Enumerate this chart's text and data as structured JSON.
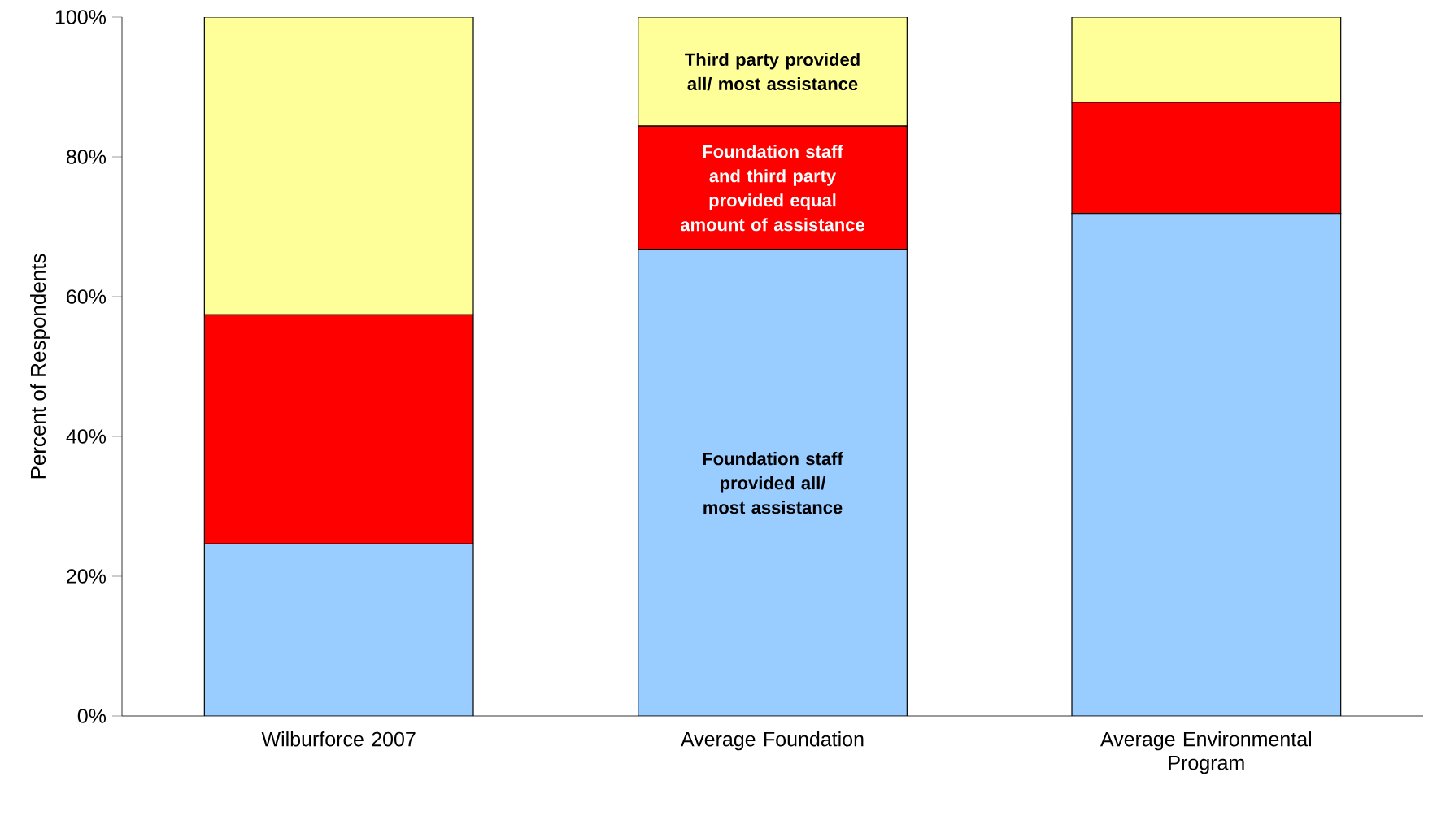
{
  "chart_data": {
    "type": "bar",
    "stacked": true,
    "ylabel": "Percent of Respondents",
    "categories": [
      "Wilburforce 2007",
      "Average Foundation",
      "Average Environmental Program"
    ],
    "series": [
      {
        "name": "Foundation staff provided all/ most assistance",
        "color": "#99ccff",
        "values": [
          24.6,
          66.7,
          71.9
        ]
      },
      {
        "name": "Foundation staff and third party provided equal amount of assistance",
        "color": "#ff0000",
        "values": [
          32.8,
          17.7,
          15.9
        ]
      },
      {
        "name": "Third party provided all/ most assistance",
        "color": "#ffff99",
        "values": [
          42.6,
          15.6,
          12.2
        ]
      }
    ],
    "ylim": [
      0,
      100
    ],
    "yticks": [
      {
        "value": 0,
        "label": "0%"
      },
      {
        "value": 20,
        "label": "20%"
      },
      {
        "value": 40,
        "label": "40%"
      },
      {
        "value": 60,
        "label": "60%"
      },
      {
        "value": 80,
        "label": "80%"
      },
      {
        "value": 100,
        "label": "100%"
      }
    ],
    "grid": false
  }
}
